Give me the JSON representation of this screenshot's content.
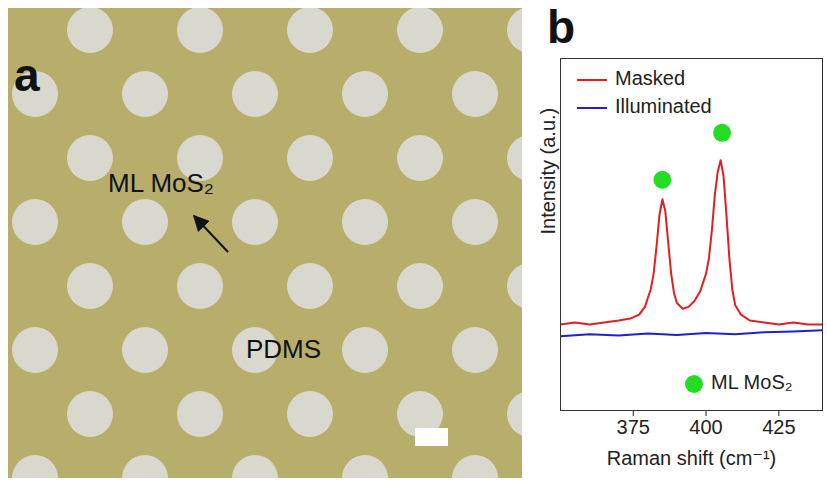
{
  "panel_a": {
    "letter": "a",
    "labels": [
      "ML MoS₂",
      "PDMS"
    ]
  },
  "chart_data": {
    "type": "line",
    "letter": "b",
    "xlabel": "Raman shift (cm⁻¹)",
    "ylabel": "Intensity (a.u.)",
    "xlim": [
      350,
      440
    ],
    "xticks": [
      375,
      400,
      425
    ],
    "ylim": [
      0,
      9
    ],
    "tick_labels": "x",
    "legend": "top-left",
    "series": [
      {
        "name": "Masked",
        "color": "#e02020",
        "x": [
          350,
          355,
          360,
          365,
          370,
          374,
          377,
          379,
          381,
          382,
          383,
          384,
          385,
          386,
          387,
          388,
          389,
          390,
          392,
          394,
          396,
          398,
          400,
          401,
          402,
          403,
          404,
          405,
          406,
          407,
          408,
          409,
          410,
          412,
          415,
          420,
          425,
          430,
          435,
          440
        ],
        "values": [
          2.2,
          2.25,
          2.2,
          2.25,
          2.3,
          2.35,
          2.45,
          2.65,
          3.1,
          3.5,
          4.2,
          5.0,
          5.4,
          5.1,
          4.3,
          3.5,
          3.0,
          2.75,
          2.6,
          2.65,
          2.8,
          3.05,
          3.5,
          3.9,
          4.6,
          5.5,
          6.1,
          6.4,
          6.0,
          5.0,
          3.9,
          3.1,
          2.7,
          2.45,
          2.3,
          2.25,
          2.2,
          2.25,
          2.2,
          2.2
        ]
      },
      {
        "name": "Illuminated",
        "color": "#2020d0",
        "x": [
          350,
          360,
          370,
          380,
          390,
          400,
          410,
          420,
          430,
          440
        ],
        "values": [
          1.9,
          1.95,
          1.92,
          1.97,
          1.93,
          1.98,
          1.95,
          2.0,
          2.02,
          2.05
        ]
      }
    ],
    "markers": {
      "label": "ML MoS₂",
      "color": "#22dd22",
      "marker": "circle",
      "legend": "bottom-right",
      "x": [
        385,
        405.5
      ],
      "y": [
        5.9,
        7.1
      ]
    }
  }
}
